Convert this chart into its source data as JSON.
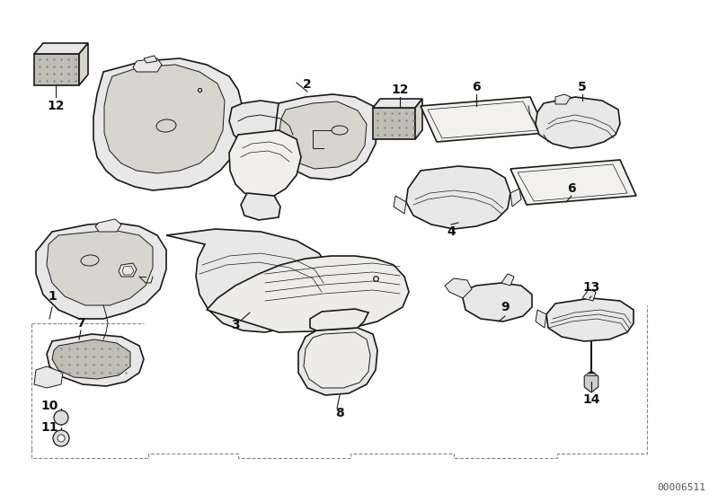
{
  "bg_color": "#ffffff",
  "line_color": "#1a1a1a",
  "fig_width": 7.99,
  "fig_height": 5.59,
  "dpi": 100,
  "catalog_number": "00006511",
  "label_fontsize": 10
}
